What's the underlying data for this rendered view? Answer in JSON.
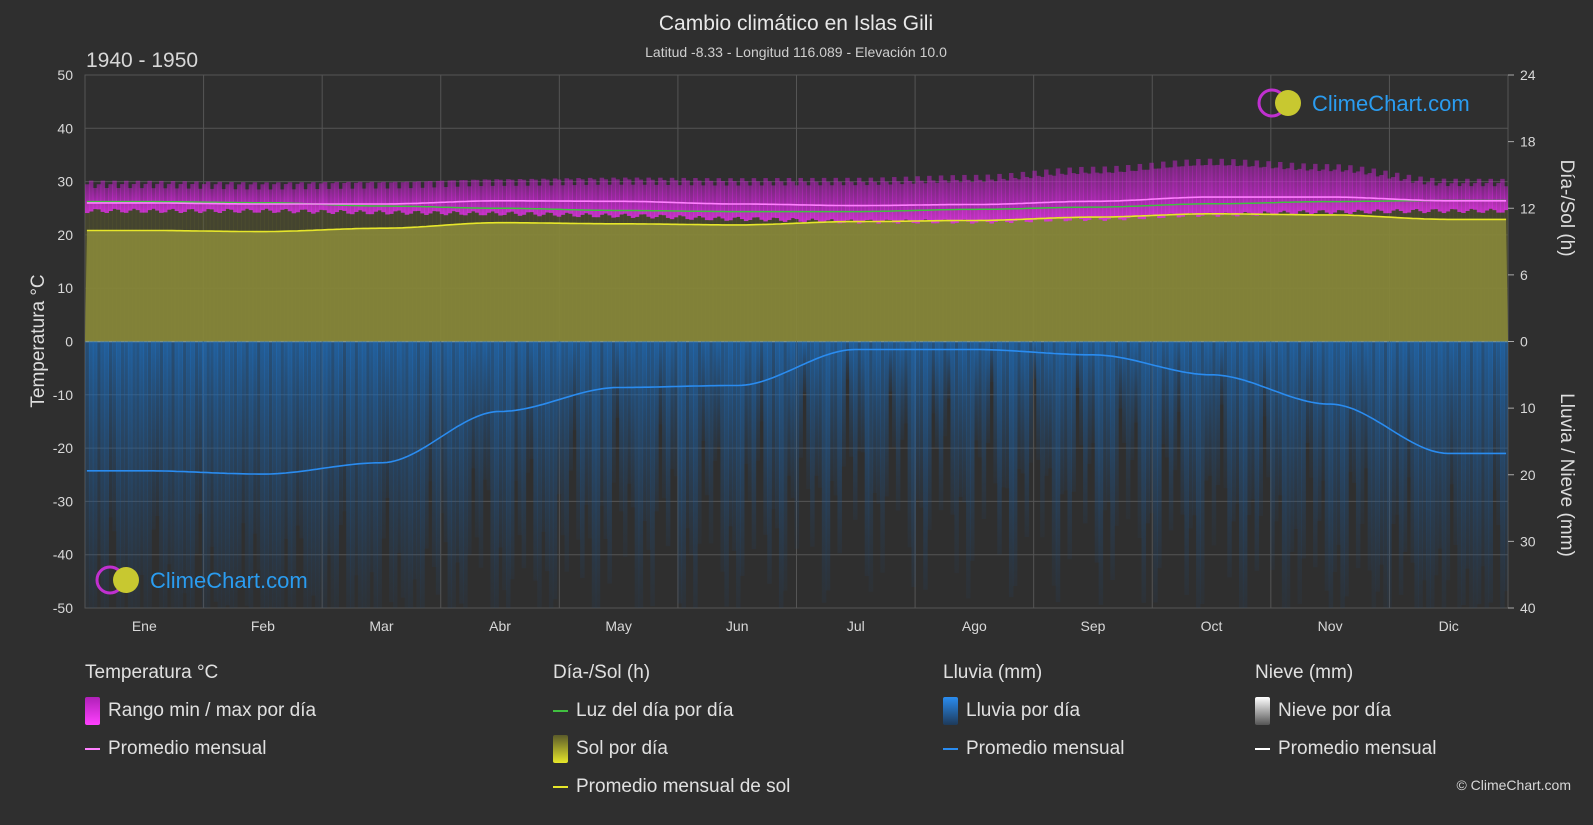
{
  "header": {
    "title": "Cambio climático en Islas Gili",
    "subtitle": "Latitud -8.33 - Longitud 116.089 - Elevación 10.0",
    "period": "1940 - 1950"
  },
  "watermark": {
    "text": "ClimeChart.com"
  },
  "copyright": "© ClimeChart.com",
  "colors": {
    "background": "#2f2f2f",
    "temp_range": "#d02ad8",
    "temp_avg": "#ff80ff",
    "daylight": "#40c040",
    "sunshine": "#8c8c3a",
    "sunshine_avg": "#e6e62a",
    "rain": "#1e78d2",
    "rain_avg": "#2a8cf0",
    "snow_avg": "#ffffff",
    "watermark_text": "#2a9cf0"
  },
  "chart_data": {
    "type": "line",
    "categories": [
      "Ene",
      "Feb",
      "Mar",
      "Abr",
      "May",
      "Jun",
      "Jul",
      "Ago",
      "Sep",
      "Oct",
      "Nov",
      "Dic"
    ],
    "axes": {
      "left": {
        "label": "Temperatura °C",
        "min": -50,
        "max": 50,
        "ticks": [
          50,
          40,
          30,
          20,
          10,
          0,
          -10,
          -20,
          -30,
          -40,
          -50
        ]
      },
      "right_top": {
        "label": "Día-/Sol (h)",
        "min": 0,
        "max": 24,
        "ticks": [
          24,
          18,
          12,
          6,
          0
        ]
      },
      "right_bottom": {
        "label": "Lluvia / Nieve (mm)",
        "min": 0,
        "max": 40,
        "ticks": [
          0,
          10,
          20,
          30,
          40
        ]
      }
    },
    "grid": true,
    "series": [
      {
        "name": "Rango min / max por día",
        "unit": "°C",
        "type": "band",
        "min": [
          24.5,
          24.5,
          24.2,
          24.0,
          23.6,
          23.0,
          22.5,
          22.5,
          23.0,
          23.8,
          24.3,
          24.5
        ],
        "max": [
          29.5,
          29.3,
          29.5,
          30.0,
          30.2,
          30.0,
          30.0,
          30.5,
          32.0,
          33.5,
          32.5,
          29.8
        ]
      },
      {
        "name": "Promedio mensual",
        "unit": "°C",
        "values": [
          26.0,
          25.8,
          25.8,
          26.4,
          26.3,
          25.8,
          25.5,
          25.7,
          26.3,
          27.1,
          27.1,
          26.4
        ]
      },
      {
        "name": "Luz del día por día",
        "unit": "h",
        "values": [
          12.6,
          12.5,
          12.2,
          12.0,
          11.8,
          11.7,
          11.7,
          11.9,
          12.1,
          12.4,
          12.6,
          12.7
        ]
      },
      {
        "name": "Sol por día",
        "unit": "h",
        "type": "area",
        "values": [
          10.0,
          9.9,
          10.2,
          10.7,
          10.6,
          10.5,
          10.8,
          10.9,
          11.2,
          11.5,
          11.4,
          11.0
        ]
      },
      {
        "name": "Promedio mensual de sol",
        "unit": "h",
        "values": [
          10.0,
          9.9,
          10.2,
          10.7,
          10.6,
          10.5,
          10.8,
          10.9,
          11.2,
          11.5,
          11.4,
          11.0
        ]
      },
      {
        "name": "Lluvia por día",
        "unit": "mm",
        "type": "bars"
      },
      {
        "name": "Promedio mensual",
        "unit": "mm",
        "values": [
          19.4,
          19.9,
          18.2,
          10.5,
          6.9,
          6.6,
          1.2,
          1.2,
          2.0,
          5.0,
          9.4,
          16.8
        ]
      },
      {
        "name": "Nieve por día",
        "unit": "mm",
        "values": [
          0,
          0,
          0,
          0,
          0,
          0,
          0,
          0,
          0,
          0,
          0,
          0
        ]
      },
      {
        "name": "Promedio mensual",
        "unit": "mm",
        "values": [
          0,
          0,
          0,
          0,
          0,
          0,
          0,
          0,
          0,
          0,
          0,
          0
        ]
      }
    ]
  },
  "legend": {
    "temperature": {
      "title": "Temperatura °C",
      "range": "Rango min / max por día",
      "avg": "Promedio mensual"
    },
    "sun": {
      "title": "Día-/Sol (h)",
      "daylight": "Luz del día por día",
      "sunshine": "Sol por día",
      "sun_avg": "Promedio mensual de sol"
    },
    "rain": {
      "title": "Lluvia (mm)",
      "daily": "Lluvia por día",
      "avg": "Promedio mensual"
    },
    "snow": {
      "title": "Nieve (mm)",
      "daily": "Nieve por día",
      "avg": "Promedio mensual"
    }
  }
}
